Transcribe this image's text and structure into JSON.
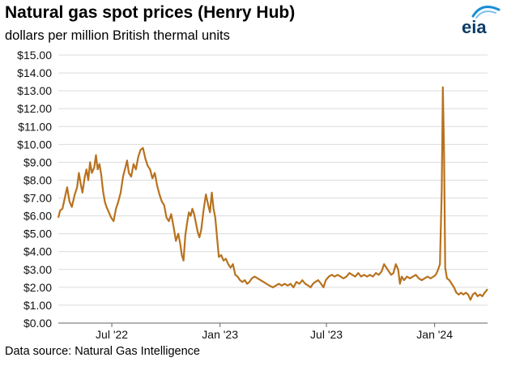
{
  "header": {
    "title": "Natural gas spot prices (Henry Hub)",
    "subtitle": "dollars per million British thermal units",
    "logo_text": "eia"
  },
  "footer": {
    "source": "Data source: Natural Gas Intelligence"
  },
  "colors": {
    "line": "#b8721e",
    "grid": "#dcdcdc",
    "axis": "#666666",
    "logo_text": "#0b3b66",
    "logo_arc": "#1a8fd4"
  },
  "chart_data": {
    "type": "line",
    "title": "Natural gas spot prices (Henry Hub)",
    "subtitle": "dollars per million British thermal units",
    "xlabel": "",
    "ylabel": "",
    "ylim": [
      0,
      15
    ],
    "yticks": [
      0,
      1,
      2,
      3,
      4,
      5,
      6,
      7,
      8,
      9,
      10,
      11,
      12,
      13,
      14,
      15
    ],
    "ytick_labels": [
      "$0.00",
      "$1.00",
      "$2.00",
      "$3.00",
      "$4.00",
      "$5.00",
      "$6.00",
      "$7.00",
      "$8.00",
      "$9.00",
      "$10.00",
      "$11.00",
      "$12.00",
      "$13.00",
      "$14.00",
      "$15.00"
    ],
    "xlim": [
      "2022-04-01",
      "2024-03-31"
    ],
    "xticks": [
      "2022-07-01",
      "2023-01-01",
      "2023-07-01",
      "2024-01-01"
    ],
    "xtick_labels": [
      "Jul '22",
      "Jan '23",
      "Jul '23",
      "Jan '24"
    ],
    "grid": true,
    "legend": "none",
    "series": [
      {
        "points": [
          [
            "2022-04-01",
            5.9
          ],
          [
            "2022-04-04",
            6.3
          ],
          [
            "2022-04-08",
            6.4
          ],
          [
            "2022-04-12",
            7.0
          ],
          [
            "2022-04-16",
            7.6
          ],
          [
            "2022-04-20",
            6.8
          ],
          [
            "2022-04-24",
            6.5
          ],
          [
            "2022-04-29",
            7.2
          ],
          [
            "2022-05-03",
            7.6
          ],
          [
            "2022-05-06",
            8.4
          ],
          [
            "2022-05-09",
            7.8
          ],
          [
            "2022-05-12",
            7.3
          ],
          [
            "2022-05-16",
            8.2
          ],
          [
            "2022-05-19",
            8.6
          ],
          [
            "2022-05-22",
            8.0
          ],
          [
            "2022-05-25",
            9.0
          ],
          [
            "2022-05-28",
            8.4
          ],
          [
            "2022-06-01",
            8.7
          ],
          [
            "2022-06-04",
            9.4
          ],
          [
            "2022-06-07",
            8.6
          ],
          [
            "2022-06-10",
            8.9
          ],
          [
            "2022-06-13",
            8.3
          ],
          [
            "2022-06-16",
            7.4
          ],
          [
            "2022-06-19",
            6.8
          ],
          [
            "2022-06-22",
            6.5
          ],
          [
            "2022-06-26",
            6.2
          ],
          [
            "2022-06-30",
            5.9
          ],
          [
            "2022-07-04",
            5.7
          ],
          [
            "2022-07-08",
            6.4
          ],
          [
            "2022-07-12",
            6.8
          ],
          [
            "2022-07-16",
            7.3
          ],
          [
            "2022-07-20",
            8.2
          ],
          [
            "2022-07-24",
            8.7
          ],
          [
            "2022-07-27",
            9.1
          ],
          [
            "2022-07-30",
            8.4
          ],
          [
            "2022-08-03",
            8.2
          ],
          [
            "2022-08-07",
            8.9
          ],
          [
            "2022-08-11",
            8.6
          ],
          [
            "2022-08-15",
            9.3
          ],
          [
            "2022-08-19",
            9.7
          ],
          [
            "2022-08-23",
            9.8
          ],
          [
            "2022-08-27",
            9.2
          ],
          [
            "2022-08-31",
            8.8
          ],
          [
            "2022-09-04",
            8.6
          ],
          [
            "2022-09-08",
            8.1
          ],
          [
            "2022-09-12",
            8.4
          ],
          [
            "2022-09-16",
            7.7
          ],
          [
            "2022-09-20",
            7.2
          ],
          [
            "2022-09-24",
            6.8
          ],
          [
            "2022-09-28",
            6.6
          ],
          [
            "2022-10-02",
            5.9
          ],
          [
            "2022-10-06",
            5.7
          ],
          [
            "2022-10-10",
            6.1
          ],
          [
            "2022-10-14",
            5.4
          ],
          [
            "2022-10-18",
            4.6
          ],
          [
            "2022-10-22",
            5.0
          ],
          [
            "2022-10-25",
            4.5
          ],
          [
            "2022-10-28",
            3.8
          ],
          [
            "2022-10-31",
            3.5
          ],
          [
            "2022-11-03",
            4.9
          ],
          [
            "2022-11-06",
            5.6
          ],
          [
            "2022-11-09",
            6.2
          ],
          [
            "2022-11-12",
            6.0
          ],
          [
            "2022-11-15",
            6.4
          ],
          [
            "2022-11-18",
            6.1
          ],
          [
            "2022-11-21",
            5.6
          ],
          [
            "2022-11-24",
            5.1
          ],
          [
            "2022-11-27",
            4.8
          ],
          [
            "2022-11-30",
            5.2
          ],
          [
            "2022-12-04",
            6.3
          ],
          [
            "2022-12-08",
            7.2
          ],
          [
            "2022-12-12",
            6.6
          ],
          [
            "2022-12-15",
            6.2
          ],
          [
            "2022-12-18",
            7.3
          ],
          [
            "2022-12-21",
            6.4
          ],
          [
            "2022-12-24",
            5.9
          ],
          [
            "2022-12-27",
            4.8
          ],
          [
            "2022-12-30",
            3.7
          ],
          [
            "2023-01-03",
            3.8
          ],
          [
            "2023-01-07",
            3.5
          ],
          [
            "2023-01-11",
            3.6
          ],
          [
            "2023-01-15",
            3.3
          ],
          [
            "2023-01-19",
            3.1
          ],
          [
            "2023-01-23",
            3.3
          ],
          [
            "2023-01-27",
            2.7
          ],
          [
            "2023-01-31",
            2.6
          ],
          [
            "2023-02-04",
            2.4
          ],
          [
            "2023-02-08",
            2.3
          ],
          [
            "2023-02-12",
            2.4
          ],
          [
            "2023-02-16",
            2.2
          ],
          [
            "2023-02-20",
            2.3
          ],
          [
            "2023-02-24",
            2.5
          ],
          [
            "2023-03-01",
            2.6
          ],
          [
            "2023-03-06",
            2.5
          ],
          [
            "2023-03-11",
            2.4
          ],
          [
            "2023-03-16",
            2.3
          ],
          [
            "2023-03-21",
            2.2
          ],
          [
            "2023-03-26",
            2.1
          ],
          [
            "2023-04-01",
            2.0
          ],
          [
            "2023-04-06",
            2.1
          ],
          [
            "2023-04-11",
            2.2
          ],
          [
            "2023-04-16",
            2.1
          ],
          [
            "2023-04-21",
            2.2
          ],
          [
            "2023-04-26",
            2.1
          ],
          [
            "2023-05-01",
            2.2
          ],
          [
            "2023-05-06",
            2.0
          ],
          [
            "2023-05-11",
            2.3
          ],
          [
            "2023-05-16",
            2.2
          ],
          [
            "2023-05-21",
            2.4
          ],
          [
            "2023-05-26",
            2.2
          ],
          [
            "2023-05-31",
            2.1
          ],
          [
            "2023-06-04",
            2.0
          ],
          [
            "2023-06-08",
            2.2
          ],
          [
            "2023-06-12",
            2.3
          ],
          [
            "2023-06-17",
            2.4
          ],
          [
            "2023-06-22",
            2.2
          ],
          [
            "2023-06-26",
            2.0
          ],
          [
            "2023-06-30",
            2.4
          ],
          [
            "2023-07-05",
            2.6
          ],
          [
            "2023-07-10",
            2.7
          ],
          [
            "2023-07-15",
            2.6
          ],
          [
            "2023-07-20",
            2.7
          ],
          [
            "2023-07-25",
            2.6
          ],
          [
            "2023-07-30",
            2.5
          ],
          [
            "2023-08-04",
            2.6
          ],
          [
            "2023-08-09",
            2.8
          ],
          [
            "2023-08-14",
            2.7
          ],
          [
            "2023-08-19",
            2.6
          ],
          [
            "2023-08-24",
            2.8
          ],
          [
            "2023-08-29",
            2.6
          ],
          [
            "2023-09-03",
            2.7
          ],
          [
            "2023-09-08",
            2.6
          ],
          [
            "2023-09-13",
            2.7
          ],
          [
            "2023-09-18",
            2.6
          ],
          [
            "2023-09-23",
            2.8
          ],
          [
            "2023-09-28",
            2.7
          ],
          [
            "2023-10-03",
            2.9
          ],
          [
            "2023-10-07",
            3.3
          ],
          [
            "2023-10-11",
            3.1
          ],
          [
            "2023-10-15",
            2.9
          ],
          [
            "2023-10-19",
            2.7
          ],
          [
            "2023-10-23",
            2.8
          ],
          [
            "2023-10-27",
            3.3
          ],
          [
            "2023-10-31",
            3.0
          ],
          [
            "2023-11-03",
            2.2
          ],
          [
            "2023-11-06",
            2.6
          ],
          [
            "2023-11-10",
            2.4
          ],
          [
            "2023-11-15",
            2.6
          ],
          [
            "2023-11-20",
            2.5
          ],
          [
            "2023-11-25",
            2.6
          ],
          [
            "2023-11-30",
            2.7
          ],
          [
            "2023-12-05",
            2.5
          ],
          [
            "2023-12-10",
            2.4
          ],
          [
            "2023-12-15",
            2.5
          ],
          [
            "2023-12-20",
            2.6
          ],
          [
            "2023-12-25",
            2.5
          ],
          [
            "2023-12-30",
            2.6
          ],
          [
            "2024-01-03",
            2.7
          ],
          [
            "2024-01-07",
            3.0
          ],
          [
            "2024-01-10",
            3.3
          ],
          [
            "2024-01-13",
            7.4
          ],
          [
            "2024-01-15",
            13.2
          ],
          [
            "2024-01-17",
            9.5
          ],
          [
            "2024-01-19",
            3.1
          ],
          [
            "2024-01-22",
            2.5
          ],
          [
            "2024-01-26",
            2.4
          ],
          [
            "2024-01-30",
            2.2
          ],
          [
            "2024-02-03",
            2.0
          ],
          [
            "2024-02-07",
            1.7
          ],
          [
            "2024-02-11",
            1.6
          ],
          [
            "2024-02-15",
            1.7
          ],
          [
            "2024-02-19",
            1.6
          ],
          [
            "2024-02-23",
            1.7
          ],
          [
            "2024-02-27",
            1.6
          ],
          [
            "2024-03-02",
            1.3
          ],
          [
            "2024-03-06",
            1.6
          ],
          [
            "2024-03-10",
            1.7
          ],
          [
            "2024-03-14",
            1.5
          ],
          [
            "2024-03-18",
            1.6
          ],
          [
            "2024-03-22",
            1.5
          ],
          [
            "2024-03-26",
            1.7
          ],
          [
            "2024-03-31",
            1.9
          ]
        ]
      }
    ]
  }
}
